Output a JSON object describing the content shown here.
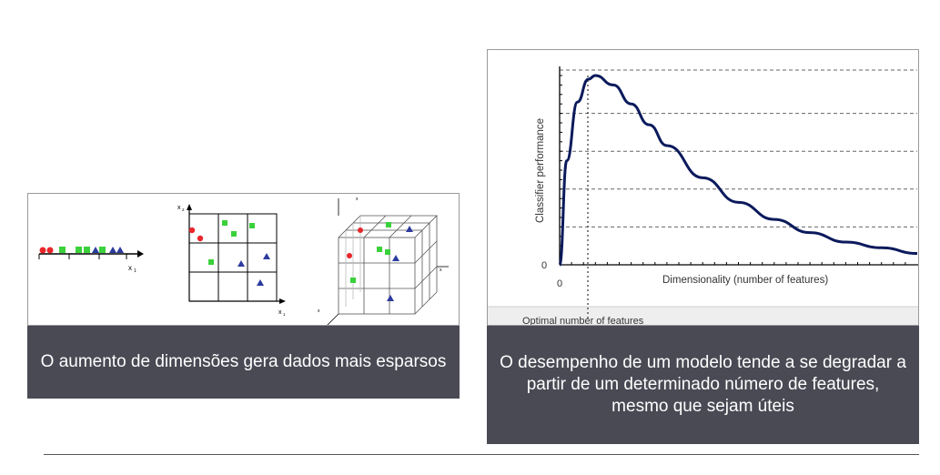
{
  "left_figure": {
    "axis_1d_label": "x",
    "axis_1d_sub": "1",
    "axis_2d_x": "x",
    "axis_2d_x_sub": "1",
    "axis_2d_y": "x",
    "axis_2d_y_sub": "2",
    "axis_3d_1": "x",
    "axis_3d_2": "x",
    "axis_3d_3": "x",
    "caption": "O aumento de dimensões gera dados mais esparsos"
  },
  "right_figure": {
    "ylabel": "Classifier performance",
    "xlabel": "Dimensionality (number of features)",
    "origin_y": "0",
    "origin_x": "0",
    "optimal_label": "Optimal number of features",
    "caption": "O desempenho de um modelo tende a se degradar a partir de um determinado número de features, mesmo que sejam úteis"
  },
  "colors": {
    "red": "#e8262b",
    "green": "#3ad13a",
    "blue": "#2b3b9e",
    "curve": "#0b1a5c",
    "caption_bg": "#4a4a55"
  },
  "chart_data": {
    "type": "line",
    "title": "",
    "xlabel": "Dimensionality (number of features)",
    "ylabel": "Classifier performance",
    "series": [
      {
        "x": [
          0,
          0.2,
          0.5,
          0.8,
          1.0,
          1.5,
          2.0,
          2.5,
          3.0,
          4.0,
          5.0,
          6.0,
          7.0,
          8.0,
          9.0,
          10.0
        ],
        "y": [
          0,
          0.55,
          0.86,
          0.98,
          1.0,
          0.95,
          0.85,
          0.74,
          0.63,
          0.46,
          0.33,
          0.24,
          0.17,
          0.12,
          0.09,
          0.06
        ]
      }
    ],
    "annotations": [
      "Optimal number of features"
    ],
    "grid": "horizontal dashed"
  }
}
